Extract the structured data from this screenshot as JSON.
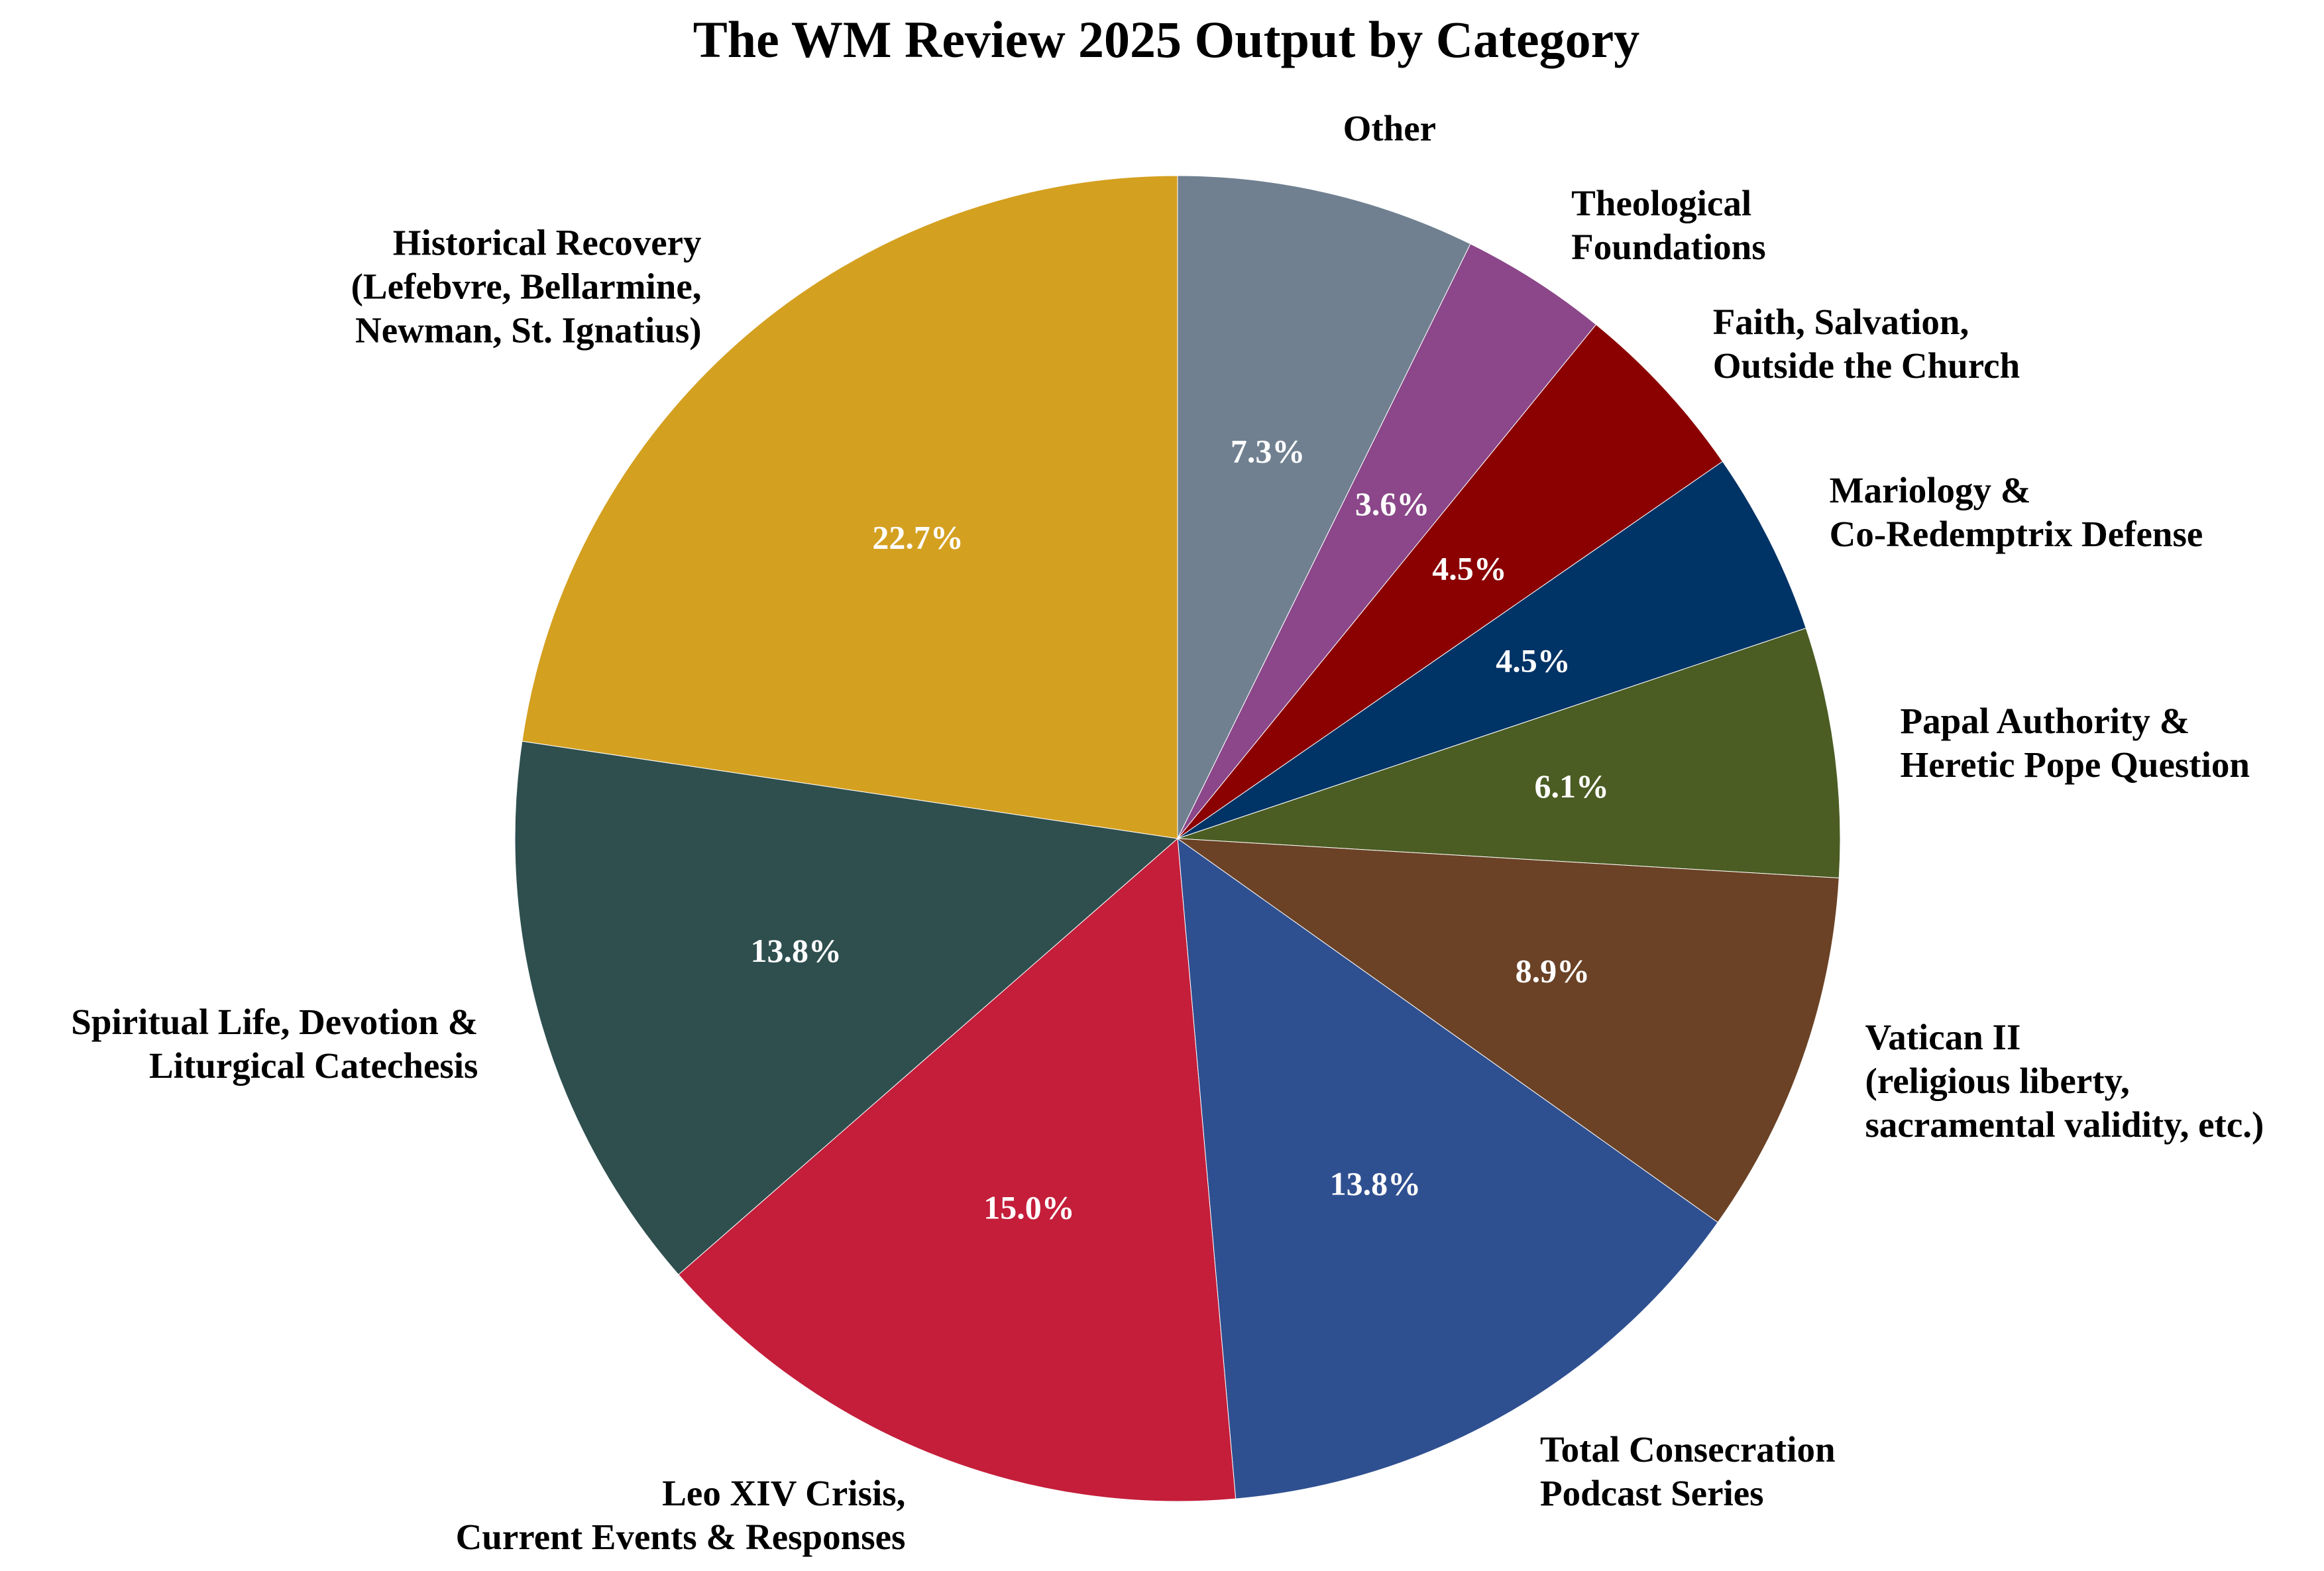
{
  "chart_data": {
    "type": "pie",
    "title": "The WM Review 2025 Output by Category",
    "start": "top, clockwise",
    "slices": [
      {
        "label": [
          "Other"
        ],
        "value": 7.3,
        "pct_text": "7.3%",
        "color": "#708090"
      },
      {
        "label": [
          "Theological",
          "Foundations"
        ],
        "value": 3.6,
        "pct_text": "3.6%",
        "color": "#8B4789"
      },
      {
        "label": [
          "Faith, Salvation,",
          "Outside the Church"
        ],
        "value": 4.5,
        "pct_text": "4.5%",
        "color": "#8B0000"
      },
      {
        "label": [
          "Mariology &",
          "Co-Redemptrix Defense"
        ],
        "value": 4.5,
        "pct_text": "4.5%",
        "color": "#003366"
      },
      {
        "label": [
          "Papal Authority &",
          "Heretic Pope Question"
        ],
        "value": 6.1,
        "pct_text": "6.1%",
        "color": "#4B5D23"
      },
      {
        "label": [
          "Vatican II",
          "(religious liberty,",
          "sacramental validity, etc.)"
        ],
        "value": 8.9,
        "pct_text": "8.9%",
        "color": "#6B4226"
      },
      {
        "label": [
          "Total Consecration",
          "Podcast Series"
        ],
        "value": 13.8,
        "pct_text": "13.8%",
        "color": "#2F5090"
      },
      {
        "label": [
          "Leo XIV Crisis,",
          "Current Events & Responses"
        ],
        "value": 15.0,
        "pct_text": "15.0%",
        "color": "#C41E3A"
      },
      {
        "label": [
          "Spiritual Life, Devotion &",
          "Liturgical Catechesis"
        ],
        "value": 13.8,
        "pct_text": "13.8%",
        "color": "#2F4F4F"
      },
      {
        "label": [
          "Historical Recovery",
          "(Lefebvre, Bellarmine,",
          "Newman, St. Ignatius)"
        ],
        "value": 22.7,
        "pct_text": "22.7%",
        "color": "#D4A020"
      }
    ]
  }
}
